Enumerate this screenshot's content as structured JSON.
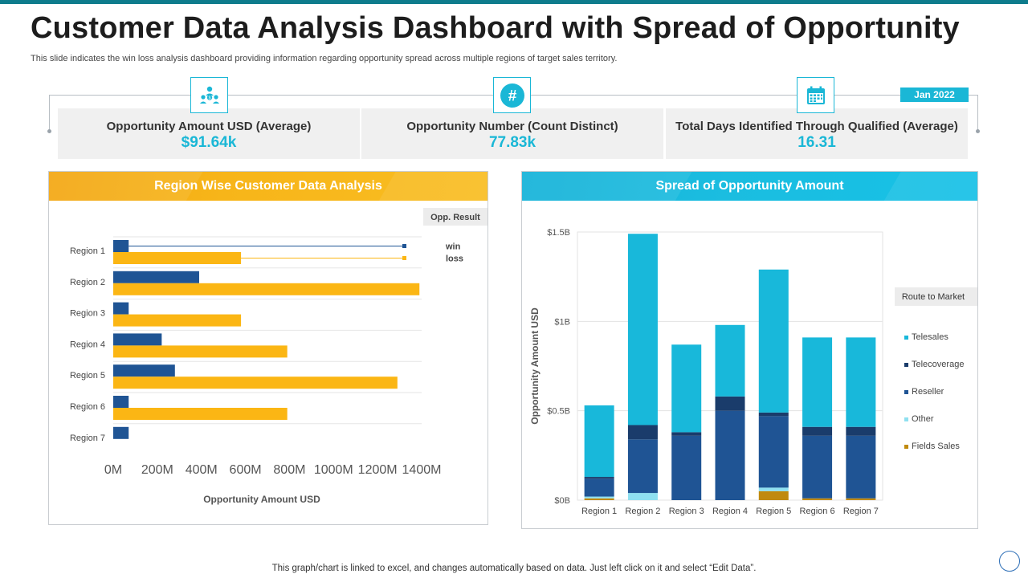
{
  "header": {
    "title": "Customer Data Analysis Dashboard with Spread of Opportunity",
    "subtitle": "This slide indicates the win loss analysis dashboard providing information regarding opportunity spread across multiple regions of target sales territory."
  },
  "date_badge": "Jan 2022",
  "kpis": [
    {
      "label": "Opportunity Amount  USD (Average)",
      "value": "$91.64k",
      "icon": "people-money-icon"
    },
    {
      "label": "Opportunity Number (Count Distinct)",
      "value": "77.83k",
      "icon": "hashtag-icon"
    },
    {
      "label": "Total Days Identified Through Qualified (Average)",
      "value": "16.31",
      "icon": "calendar-icon"
    }
  ],
  "panels": {
    "left_title": "Region Wise Customer Data Analysis",
    "right_title": "Spread of Opportunity Amount"
  },
  "colors": {
    "win": "#1f5494",
    "loss": "#fbb614",
    "telesales": "#18b8da",
    "telecoverage": "#1a3c6b",
    "reseller": "#1f5494",
    "other": "#8fe0f0",
    "fields_sales": "#c08a0e"
  },
  "chart_data": [
    {
      "type": "bar",
      "orientation": "horizontal",
      "title": "Region Wise Customer Data Analysis",
      "categories": [
        "Region 1",
        "Region 2",
        "Region 3",
        "Region 4",
        "Region 5",
        "Region 6",
        "Region 7"
      ],
      "series": [
        {
          "name": "win",
          "values": [
            70,
            390,
            70,
            220,
            280,
            70,
            70
          ]
        },
        {
          "name": "loss",
          "values": [
            580,
            1390,
            580,
            790,
            1290,
            790,
            0
          ]
        }
      ],
      "legend_title": "Opp. Result",
      "legend_position": "top-right",
      "xlabel": "Opportunity  Amount  USD",
      "ylabel": "",
      "xlim": [
        0,
        1400
      ],
      "xticks": [
        0,
        200,
        400,
        600,
        800,
        1000,
        1200,
        1400
      ],
      "xtick_labels": [
        "0M",
        "200M",
        "400M",
        "600M",
        "800M",
        "1000M",
        "1200M",
        "1400M"
      ],
      "grid": true
    },
    {
      "type": "bar",
      "stacked": true,
      "title": "Spread of Opportunity Amount",
      "categories": [
        "Region 1",
        "Region 2",
        "Region 3",
        "Region 4",
        "Region 5",
        "Region 6",
        "Region 7"
      ],
      "series": [
        {
          "name": "Fields Sales",
          "values": [
            0.01,
            0,
            0,
            0,
            0.05,
            0.01,
            0.01
          ]
        },
        {
          "name": "Other",
          "values": [
            0.01,
            0.04,
            0,
            0,
            0.02,
            0,
            0
          ]
        },
        {
          "name": "Reseller",
          "values": [
            0.1,
            0.3,
            0.36,
            0.5,
            0.4,
            0.35,
            0.35
          ]
        },
        {
          "name": "Telecoverage",
          "values": [
            0.01,
            0.08,
            0.02,
            0.08,
            0.02,
            0.05,
            0.05
          ]
        },
        {
          "name": "Telesales",
          "values": [
            0.4,
            1.07,
            0.49,
            0.4,
            0.8,
            0.5,
            0.5
          ]
        }
      ],
      "legend_order": [
        "Telesales",
        "Telecoverage",
        "Reseller",
        "Other",
        "Fields Sales"
      ],
      "legend_title": "Route to Market",
      "legend_position": "right",
      "xlabel": "",
      "ylabel": "Opportunity  Amount  USD",
      "ylim": [
        0,
        1.5
      ],
      "yticks": [
        0,
        0.5,
        1,
        1.5
      ],
      "ytick_labels": [
        "$0B",
        "$0.5B",
        "$1B",
        "$1.5B"
      ],
      "grid": true
    }
  ],
  "footer": "This graph/chart is linked to excel,  and changes automatically based on data. Just left click on it and select “Edit Data”."
}
